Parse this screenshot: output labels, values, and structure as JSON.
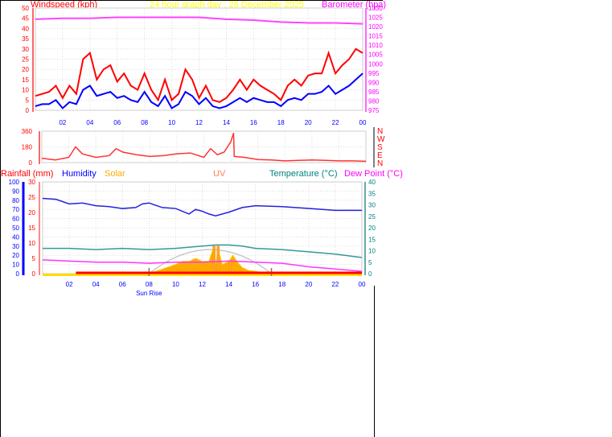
{
  "title": "24 hour graph day : 26 December 2025",
  "colors": {
    "gust": "#ff0000",
    "avg": "#0000ff",
    "baro": "#ff44ff",
    "dir": "#ff3333",
    "humidity": "#2222dd",
    "temperature": "#339999",
    "dewpoint": "#ff33ff",
    "solar": "#ffaa00",
    "uv": "#ff7f50",
    "rain": "#ff0000",
    "sun": "#c8c8c8",
    "xtick": "#0000ff"
  },
  "chart_data": [
    {
      "type": "line",
      "title": "24 hour graph day : 26 December 2025",
      "left_axis": {
        "label": "Windspeed (kph)",
        "range": [
          0,
          50
        ],
        "ticks": [
          "0",
          "5",
          "10",
          "15",
          "20",
          "25",
          "30",
          "35",
          "40",
          "45",
          "50"
        ]
      },
      "right_axis": {
        "label": "Barometer (hpa)",
        "range": [
          975,
          1030
        ],
        "ticks": [
          "975",
          "980",
          "985",
          "990",
          "995",
          "1000",
          "1005",
          "1010",
          "1015",
          "1020",
          "1025",
          "1030"
        ]
      },
      "x_ticks": [
        "02",
        "04",
        "06",
        "08",
        "10",
        "12",
        "14",
        "16",
        "18",
        "20",
        "22",
        "00"
      ],
      "x_range_hours": [
        0,
        24
      ],
      "grid": true,
      "series": [
        {
          "name": "Windspeed (kph)",
          "role": "gust",
          "axis": "left",
          "x_step_hours": 0.5,
          "values": [
            7,
            8,
            9,
            12,
            6,
            12,
            8,
            25,
            28,
            15,
            20,
            22,
            14,
            18,
            12,
            10,
            18,
            10,
            5,
            15,
            5,
            8,
            20,
            15,
            6,
            12,
            5,
            4,
            6,
            10,
            15,
            10,
            15,
            12,
            10,
            8,
            5,
            12,
            15,
            12,
            17,
            18,
            18,
            28,
            18,
            22,
            25,
            30,
            28
          ]
        },
        {
          "role": "average",
          "axis": "left",
          "x_step_hours": 0.5,
          "values": [
            2,
            3,
            3,
            5,
            1,
            4,
            3,
            10,
            12,
            7,
            8,
            9,
            6,
            7,
            5,
            4,
            9,
            4,
            2,
            7,
            1,
            3,
            9,
            7,
            3,
            6,
            2,
            1,
            2,
            4,
            6,
            4,
            6,
            5,
            4,
            4,
            2,
            5,
            6,
            5,
            8,
            8,
            9,
            12,
            8,
            10,
            12,
            15,
            18
          ]
        },
        {
          "name": "Barometer (hpa)",
          "axis": "right",
          "x": [
            0,
            2,
            4,
            6,
            8,
            10,
            12,
            14,
            16,
            18,
            20,
            22,
            24
          ],
          "values": [
            1024,
            1024.5,
            1024.5,
            1025,
            1025,
            1025,
            1025,
            1024,
            1023.5,
            1022.5,
            1022,
            1022,
            1021.5
          ]
        }
      ]
    },
    {
      "type": "line",
      "left_axis": {
        "range": [
          0,
          360
        ],
        "ticks": [
          "0",
          "180",
          "360"
        ]
      },
      "direction_letters": [
        "N",
        "W",
        "S",
        "E",
        "N"
      ],
      "series": [
        {
          "role": "wind direction",
          "x": [
            0,
            1,
            2,
            2.5,
            3,
            4,
            5,
            5.5,
            6,
            7,
            8,
            9,
            10,
            11,
            12,
            12.5,
            13,
            13.5,
            14,
            14.2,
            14.25,
            15,
            16,
            17,
            18,
            19,
            20,
            21,
            22,
            23,
            24
          ],
          "values": [
            50,
            30,
            60,
            180,
            100,
            60,
            80,
            160,
            120,
            90,
            70,
            80,
            100,
            110,
            60,
            160,
            90,
            120,
            240,
            340,
            70,
            60,
            35,
            30,
            20,
            25,
            30,
            25,
            20,
            20,
            15
          ]
        }
      ]
    },
    {
      "type": "area",
      "legend": [
        "Rainfall (mm)",
        "Humidity",
        "Solar",
        "UV",
        "Temperature (°C)",
        "Dew Point (°C)"
      ],
      "humidity_axis": {
        "range": [
          0,
          100
        ],
        "ticks": [
          "0",
          "10",
          "20",
          "30",
          "40",
          "50",
          "60",
          "70",
          "80",
          "90",
          "100"
        ]
      },
      "rain_axis": {
        "range": [
          0,
          30
        ],
        "ticks": [
          "0",
          "5",
          "10",
          "15",
          "20",
          "25",
          "30"
        ]
      },
      "temp_axis": {
        "range": [
          0,
          40
        ],
        "ticks": [
          "0",
          "5",
          "10",
          "15",
          "20",
          "25",
          "30",
          "35",
          "40"
        ]
      },
      "x_ticks": [
        "02",
        "04",
        "06",
        "08",
        "10",
        "12",
        "14",
        "16",
        "18",
        "20",
        "22",
        "00"
      ],
      "sunrise_label": "Sun Rise",
      "sunrise_hour": 8.0,
      "sunset_hour": 17.2,
      "series": [
        {
          "name": "Humidity",
          "x": [
            0,
            1,
            2,
            3,
            4,
            5,
            6,
            7,
            7.5,
            8,
            9,
            10,
            11,
            11.5,
            12,
            12.5,
            13,
            14,
            15,
            16,
            18,
            20,
            22,
            24
          ],
          "values": [
            82,
            81,
            76,
            77,
            74,
            73,
            71,
            72,
            76,
            77,
            72,
            71,
            65,
            70,
            68,
            65,
            63,
            67,
            72,
            74,
            73,
            71,
            69,
            69
          ]
        },
        {
          "name": "Temperature (°C)",
          "x": [
            0,
            2,
            4,
            6,
            8,
            10,
            12,
            13,
            14,
            15,
            16,
            18,
            20,
            22,
            24
          ],
          "values": [
            11,
            11,
            10.5,
            11,
            10.5,
            11,
            12,
            12.5,
            12.5,
            12,
            11,
            10.5,
            9.5,
            8.5,
            7
          ]
        },
        {
          "name": "Dew Point (°C)",
          "x": [
            0,
            2,
            4,
            6,
            8,
            10,
            12,
            14,
            16,
            18,
            20,
            22,
            24
          ],
          "values": [
            6,
            5.5,
            5,
            5,
            4.5,
            5,
            5,
            5.5,
            5,
            4.5,
            3,
            2,
            1
          ]
        },
        {
          "name": "Solar",
          "x": [
            8,
            9,
            10,
            10.5,
            11,
            11.5,
            12,
            12.5,
            12.8,
            13,
            13.2,
            13.5,
            14,
            14.3,
            14.6,
            15,
            15.5,
            16,
            16.5,
            17
          ],
          "values": [
            0,
            1.5,
            3,
            4,
            4,
            5,
            4,
            4,
            8,
            3,
            8,
            3,
            4,
            6,
            4,
            2,
            1,
            0.8,
            0.3,
            0
          ]
        },
        {
          "name": "UV",
          "x": [
            12.8,
            12.85,
            13.1,
            13.15,
            14.0,
            14.05
          ],
          "values": [
            0,
            9,
            0,
            9,
            0,
            4
          ]
        },
        {
          "name": "Rainfall (mm)",
          "x": [
            2.5,
            24
          ],
          "values": [
            0,
            0
          ]
        }
      ]
    }
  ]
}
